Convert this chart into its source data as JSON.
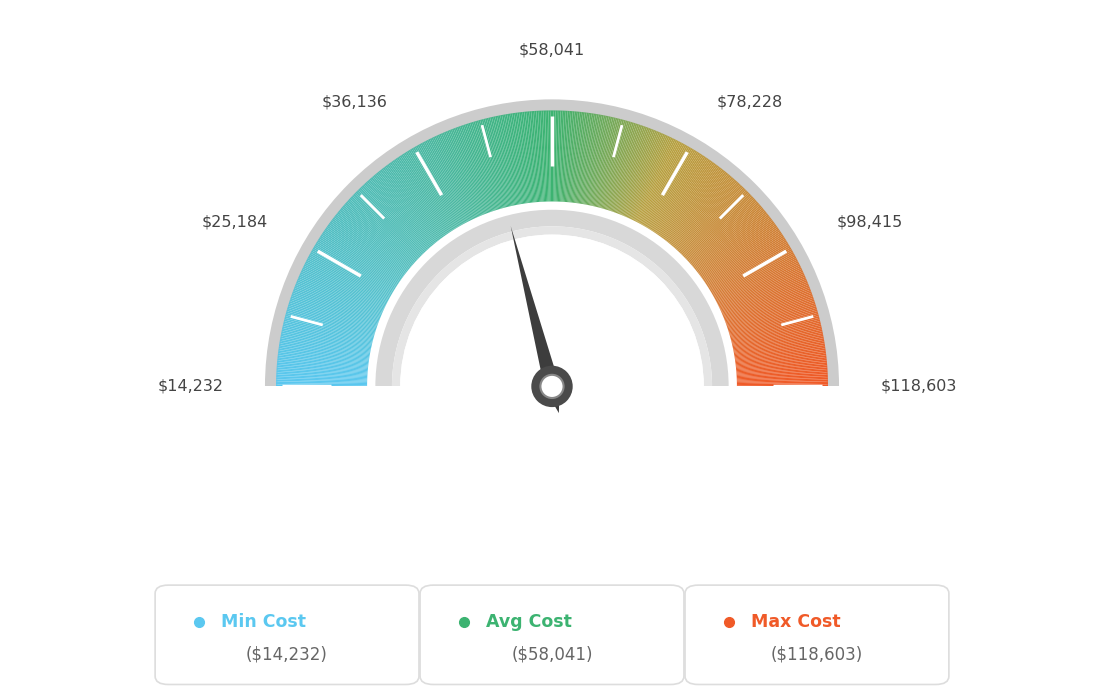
{
  "min_val": 14232,
  "max_val": 118603,
  "avg_val": 58041,
  "label_angles": {
    "$14,232": 180,
    "$25,184": 150,
    "$36,136": 120,
    "$58,041": 90,
    "$78,228": 60,
    "$98,415": 30,
    "$118,603": 0
  },
  "tick_angles_deg": [
    180,
    165,
    150,
    135,
    120,
    105,
    90,
    75,
    60,
    45,
    30,
    15,
    0
  ],
  "legend": [
    {
      "label": "Min Cost",
      "value": "($14,232)",
      "color": "#5bc8f0"
    },
    {
      "label": "Avg Cost",
      "value": "($58,041)",
      "color": "#3cb371"
    },
    {
      "label": "Max Cost",
      "value": "($118,603)",
      "color": "#f05a28"
    }
  ],
  "background_color": "#ffffff",
  "color_stops": [
    [
      0.0,
      "#5bc8f0"
    ],
    [
      0.35,
      "#4ab8a0"
    ],
    [
      0.5,
      "#3cb371"
    ],
    [
      0.65,
      "#b8a040"
    ],
    [
      1.0,
      "#f05a28"
    ]
  ]
}
